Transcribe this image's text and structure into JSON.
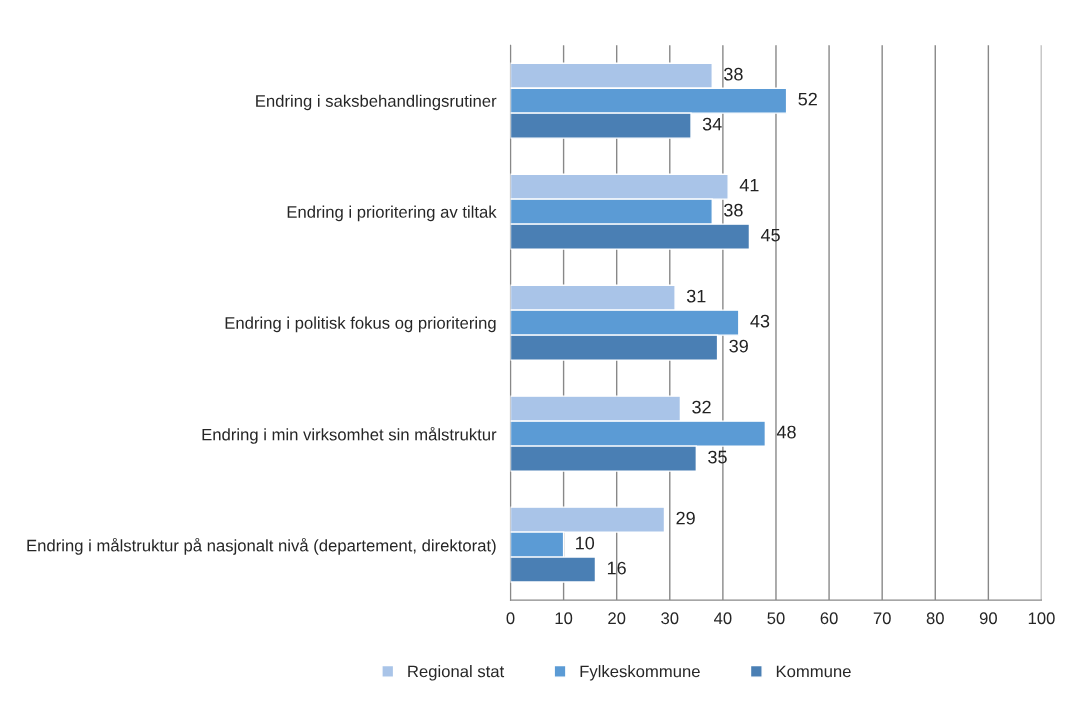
{
  "chart_data": {
    "type": "bar",
    "orientation": "horizontal",
    "categories": [
      "Endring i saksbehandlingsrutiner",
      "Endring i prioritering av tiltak",
      "Endring i politisk fokus og prioritering",
      "Endring i min virksomhet sin målstruktur",
      "Endring i målstruktur på nasjonalt nivå (departement, direktorat)"
    ],
    "series": [
      {
        "name": "Regional stat",
        "color": "#a9c4e8",
        "values": [
          38,
          41,
          31,
          32,
          29
        ]
      },
      {
        "name": "Fylkeskommune",
        "color": "#5b9bd5",
        "values": [
          52,
          38,
          43,
          48,
          10
        ]
      },
      {
        "name": "Kommune",
        "color": "#4a7fb4",
        "values": [
          34,
          45,
          39,
          35,
          16
        ]
      }
    ],
    "xlim": [
      0,
      100
    ],
    "xticks": [
      0,
      10,
      20,
      30,
      40,
      50,
      60,
      70,
      80,
      90,
      100
    ],
    "grid": "x",
    "legend": "bottom",
    "data_labels": true
  }
}
